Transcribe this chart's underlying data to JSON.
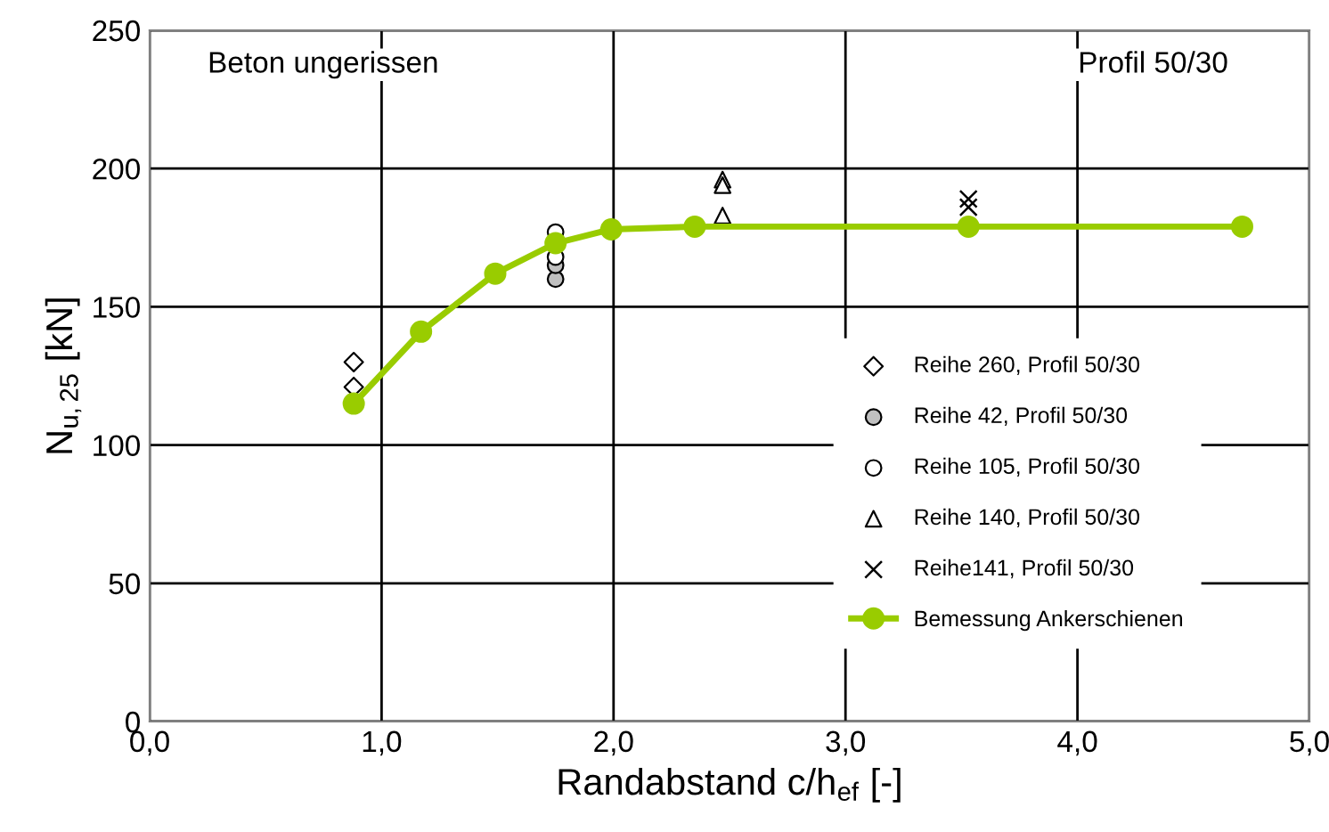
{
  "chart_data": {
    "type": "scatter",
    "xlabel": "Randabstand c/h$_{ef}$ [-]",
    "ylabel": "N$_{u,25}$ [kN]",
    "xlim": [
      0,
      5
    ],
    "ylim": [
      0,
      250
    ],
    "xticks": [
      {
        "value": 0,
        "label": "0,0"
      },
      {
        "value": 1,
        "label": "1,0"
      },
      {
        "value": 2,
        "label": "2,0"
      },
      {
        "value": 3,
        "label": "3,0"
      },
      {
        "value": 4,
        "label": "4,0"
      },
      {
        "value": 5,
        "label": "5,0"
      }
    ],
    "yticks": [
      0,
      50,
      100,
      150,
      200,
      250
    ],
    "grid": true,
    "legend": "bottom right",
    "annotations": [
      "Beton ungerissen",
      "Profil 50/30"
    ],
    "series": [
      {
        "name": "Reihe 260, Profil 50/30",
        "marker": "diamond",
        "color": "#ffffff",
        "x": [
          0.88,
          0.88
        ],
        "values": [
          130,
          121
        ]
      },
      {
        "name": "Reihe 42, Profil 50/30",
        "marker": "circle",
        "color": "#c0c0c0",
        "x": [
          1.75,
          1.75
        ],
        "values": [
          160,
          165
        ]
      },
      {
        "name": "Reihe 105, Profil 50/30",
        "marker": "circle",
        "color": "#ffffff",
        "x": [
          1.75,
          1.75
        ],
        "values": [
          177,
          168
        ]
      },
      {
        "name": "Reihe 140, Profil 50/30",
        "marker": "triangle",
        "color": "#ffffff",
        "x": [
          2.47,
          2.47,
          2.47
        ],
        "values": [
          196,
          194,
          183
        ]
      },
      {
        "name": "Reihe141, Profil 50/30",
        "marker": "cross",
        "color": "#000000",
        "x": [
          3.53,
          3.53
        ],
        "values": [
          189,
          186
        ]
      },
      {
        "name": "Bemessung Ankerschienen",
        "type": "line",
        "marker": "circle",
        "line_style": "solid",
        "color": "#99cc00",
        "x": [
          0.88,
          1.17,
          1.49,
          1.75,
          1.99,
          2.35,
          3.53,
          4.71
        ],
        "values": [
          115,
          141,
          162,
          173,
          178,
          179,
          179,
          179
        ]
      }
    ]
  }
}
